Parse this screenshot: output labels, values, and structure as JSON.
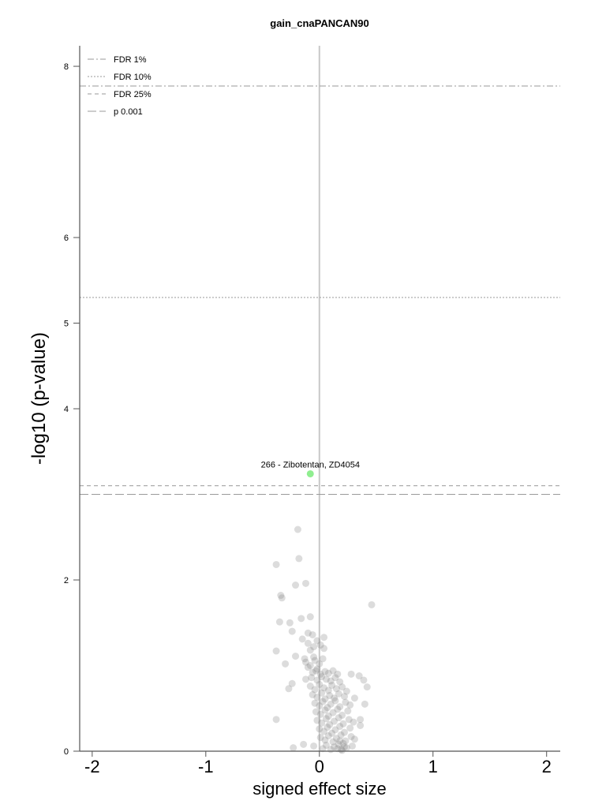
{
  "chart_data": {
    "type": "scatter",
    "title": "gain_cnaPANCAN90",
    "xlabel": "signed effect size",
    "ylabel": "-log10 (p-value)",
    "xlim": [
      -2.11,
      2.12
    ],
    "ylim": [
      0,
      8.24
    ],
    "x_ticks": [
      -2,
      -1,
      0,
      1,
      2
    ],
    "y_ticks": [
      0,
      2,
      4,
      5,
      6,
      8
    ],
    "grid": false,
    "zero_line": {
      "x": 0,
      "color": "#c8c8c8"
    },
    "legend": {
      "placement": "top-left"
    },
    "reference_line_color": "#9a9a9a",
    "axis_color": "#555555",
    "thresholds": [
      {
        "label": "FDR 1%",
        "y": 7.77,
        "style": "dash-dot"
      },
      {
        "label": "FDR 10%",
        "y": 5.3,
        "style": "dotted"
      },
      {
        "label": "FDR 25%",
        "y": 3.1,
        "style": "dashed"
      },
      {
        "label": "p 0.001",
        "y": 3.0,
        "style": "long-dash"
      }
    ],
    "highlight": {
      "label": "266 - Zibotentan, ZD4054",
      "x": -0.08,
      "y": 3.24,
      "color": "#90ee90"
    },
    "point_color": "#808080",
    "points": [
      [
        -0.19,
        2.59
      ],
      [
        -0.38,
        2.18
      ],
      [
        -0.18,
        2.25
      ],
      [
        -0.34,
        1.82
      ],
      [
        -0.33,
        1.79
      ],
      [
        -0.21,
        1.94
      ],
      [
        -0.12,
        1.96
      ],
      [
        0.46,
        1.71
      ],
      [
        -0.35,
        1.51
      ],
      [
        -0.26,
        1.5
      ],
      [
        -0.16,
        1.55
      ],
      [
        -0.08,
        1.57
      ],
      [
        -0.24,
        1.4
      ],
      [
        -0.06,
        1.36
      ],
      [
        0.04,
        1.33
      ],
      [
        -0.15,
        1.31
      ],
      [
        -0.1,
        1.38
      ],
      [
        -0.38,
        1.17
      ],
      [
        -0.21,
        1.11
      ],
      [
        -0.13,
        1.08
      ],
      [
        -0.05,
        1.1
      ],
      [
        0.35,
        0.88
      ],
      [
        0.39,
        0.83
      ],
      [
        -0.24,
        0.79
      ],
      [
        -0.27,
        0.73
      ],
      [
        0.42,
        0.75
      ],
      [
        0.4,
        0.55
      ],
      [
        -0.38,
        0.37
      ],
      [
        0.36,
        0.37
      ],
      [
        0.36,
        0.3
      ],
      [
        -0.14,
        0.08
      ],
      [
        -0.23,
        0.04
      ],
      [
        0.31,
        0.62
      ],
      [
        0.28,
        0.9
      ],
      [
        -0.3,
        1.02
      ],
      [
        -0.1,
        1.26
      ],
      [
        -0.05,
        1.22
      ],
      [
        -0.02,
        1.29
      ],
      [
        0.01,
        1.24
      ],
      [
        0.04,
        1.2
      ],
      [
        -0.08,
        1.18
      ],
      [
        -0.12,
        1.04
      ],
      [
        -0.08,
        1.0
      ],
      [
        -0.04,
        1.06
      ],
      [
        0.0,
        1.02
      ],
      [
        0.03,
        1.08
      ],
      [
        -0.1,
        0.98
      ],
      [
        -0.02,
        0.96
      ],
      [
        -0.06,
        0.92
      ],
      [
        -0.03,
        0.94
      ],
      [
        0.01,
        0.9
      ],
      [
        0.05,
        0.93
      ],
      [
        0.08,
        0.91
      ],
      [
        0.12,
        0.94
      ],
      [
        0.16,
        0.9
      ],
      [
        -0.12,
        0.84
      ],
      [
        -0.07,
        0.86
      ],
      [
        -0.02,
        0.83
      ],
      [
        0.02,
        0.87
      ],
      [
        0.06,
        0.84
      ],
      [
        0.1,
        0.82
      ],
      [
        0.14,
        0.86
      ],
      [
        0.18,
        0.81
      ],
      [
        -0.08,
        0.76
      ],
      [
        -0.04,
        0.72
      ],
      [
        0.0,
        0.78
      ],
      [
        0.04,
        0.74
      ],
      [
        0.08,
        0.71
      ],
      [
        0.11,
        0.77
      ],
      [
        0.15,
        0.73
      ],
      [
        0.2,
        0.75
      ],
      [
        0.24,
        0.7
      ],
      [
        -0.06,
        0.66
      ],
      [
        -0.02,
        0.63
      ],
      [
        0.02,
        0.68
      ],
      [
        0.05,
        0.61
      ],
      [
        0.09,
        0.65
      ],
      [
        0.13,
        0.62
      ],
      [
        0.17,
        0.67
      ],
      [
        0.22,
        0.64
      ],
      [
        -0.04,
        0.56
      ],
      [
        0.0,
        0.53
      ],
      [
        0.03,
        0.58
      ],
      [
        0.07,
        0.51
      ],
      [
        0.1,
        0.55
      ],
      [
        0.14,
        0.59
      ],
      [
        0.18,
        0.52
      ],
      [
        0.23,
        0.57
      ],
      [
        0.27,
        0.54
      ],
      [
        -0.03,
        0.46
      ],
      [
        0.01,
        0.43
      ],
      [
        0.05,
        0.48
      ],
      [
        0.08,
        0.41
      ],
      [
        0.12,
        0.45
      ],
      [
        0.16,
        0.49
      ],
      [
        0.2,
        0.42
      ],
      [
        0.25,
        0.47
      ],
      [
        -0.02,
        0.36
      ],
      [
        0.02,
        0.33
      ],
      [
        0.06,
        0.38
      ],
      [
        0.09,
        0.31
      ],
      [
        0.13,
        0.35
      ],
      [
        0.17,
        0.39
      ],
      [
        0.21,
        0.32
      ],
      [
        0.26,
        0.37
      ],
      [
        0.3,
        0.34
      ],
      [
        0.0,
        0.26
      ],
      [
        0.04,
        0.23
      ],
      [
        0.07,
        0.28
      ],
      [
        0.11,
        0.21
      ],
      [
        0.14,
        0.25
      ],
      [
        0.18,
        0.29
      ],
      [
        0.22,
        0.22
      ],
      [
        0.27,
        0.27
      ],
      [
        0.01,
        0.16
      ],
      [
        0.05,
        0.13
      ],
      [
        0.08,
        0.18
      ],
      [
        0.12,
        0.11
      ],
      [
        0.15,
        0.15
      ],
      [
        0.19,
        0.19
      ],
      [
        0.23,
        0.12
      ],
      [
        0.28,
        0.17
      ],
      [
        0.31,
        0.14
      ],
      [
        -0.05,
        0.06
      ],
      [
        0.03,
        0.03
      ],
      [
        0.06,
        0.07
      ],
      [
        0.1,
        0.02
      ],
      [
        0.13,
        0.05
      ],
      [
        0.17,
        0.08
      ],
      [
        0.2,
        0.01
      ],
      [
        0.24,
        0.04
      ],
      [
        0.29,
        0.06
      ],
      [
        0.16,
        0.03
      ],
      [
        0.21,
        0.09
      ],
      [
        0.18,
        0.12
      ],
      [
        0.22,
        0.05
      ],
      [
        0.19,
        0.02
      ]
    ]
  }
}
